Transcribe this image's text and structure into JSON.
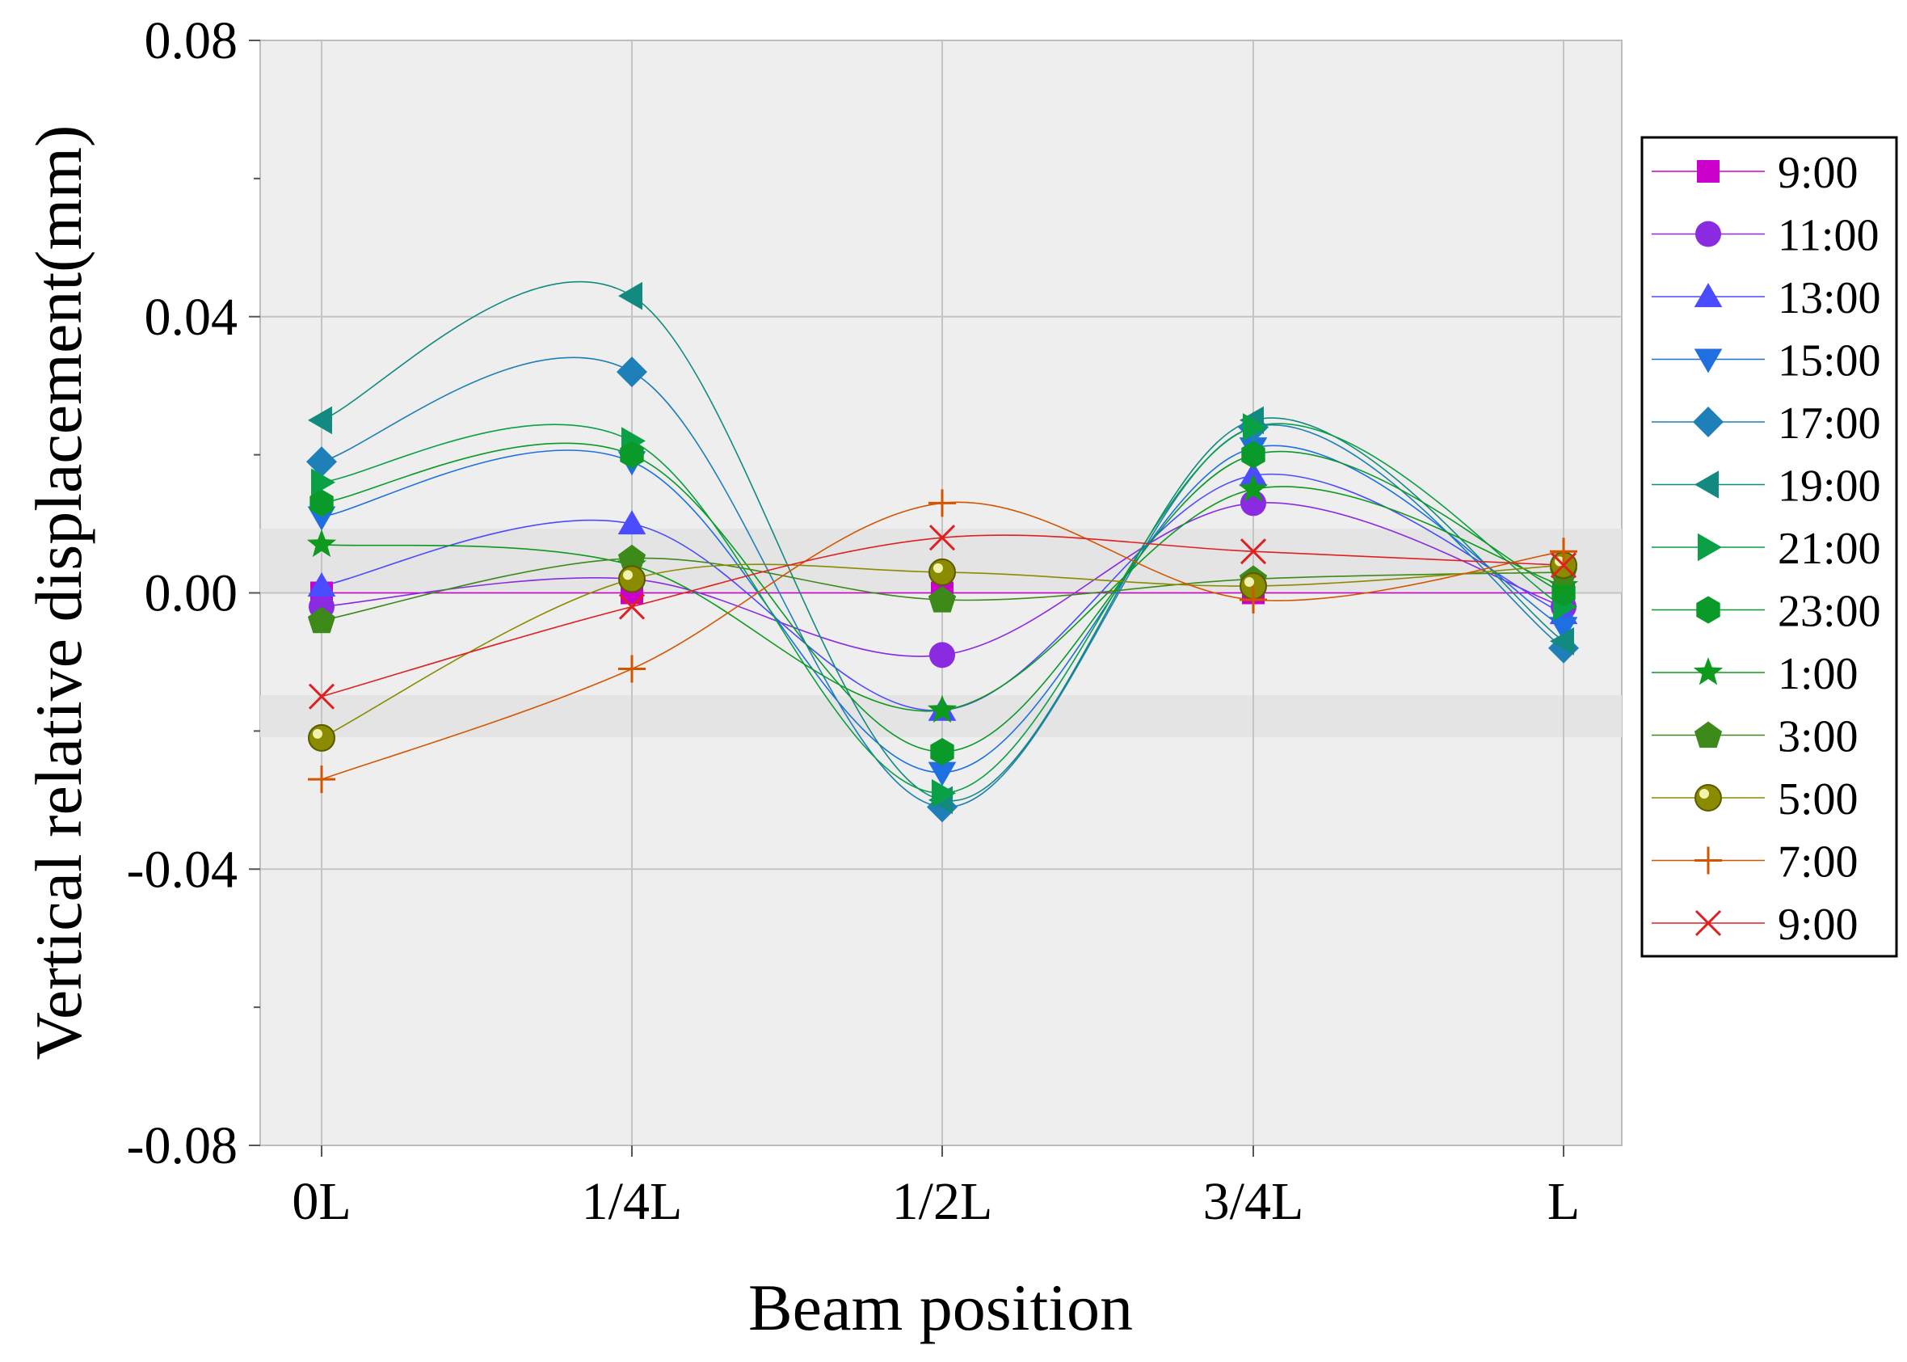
{
  "chart_data": {
    "type": "line",
    "title": "",
    "xlabel": "Beam position",
    "ylabel": "Vertical relative displacement(mm)",
    "categories": [
      "0L",
      "1/4L",
      "1/2L",
      "3/4L",
      "L"
    ],
    "ylim": [
      -0.08,
      0.08
    ],
    "yticks": [
      0.08,
      0.04,
      0.0,
      -0.04,
      -0.08
    ],
    "ytick_labels": [
      "0.08",
      "0.04",
      "0.00",
      "-0.04",
      "-0.08"
    ],
    "grid": true,
    "legend_position": "right",
    "series": [
      {
        "name": "9:00",
        "color": "#cc00cc",
        "marker": "square",
        "values": [
          0.0,
          0.0,
          0.0,
          0.0,
          0.0
        ]
      },
      {
        "name": "11:00",
        "color": "#8a2be2",
        "marker": "circle",
        "values": [
          -0.002,
          0.002,
          -0.009,
          0.013,
          -0.002
        ]
      },
      {
        "name": "13:00",
        "color": "#4b4bff",
        "marker": "triangle-up",
        "values": [
          0.001,
          0.01,
          -0.017,
          0.017,
          -0.003
        ]
      },
      {
        "name": "15:00",
        "color": "#1e6fe0",
        "marker": "triangle-down",
        "values": [
          0.011,
          0.019,
          -0.026,
          0.021,
          -0.005
        ]
      },
      {
        "name": "17:00",
        "color": "#1f7fb8",
        "marker": "diamond",
        "values": [
          0.019,
          0.032,
          -0.031,
          0.024,
          -0.008
        ]
      },
      {
        "name": "19:00",
        "color": "#128a80",
        "marker": "triangle-left",
        "values": [
          0.025,
          0.043,
          -0.03,
          0.025,
          -0.007
        ]
      },
      {
        "name": "21:00",
        "color": "#0aa045",
        "marker": "triangle-right",
        "values": [
          0.016,
          0.022,
          -0.029,
          0.024,
          -0.002
        ]
      },
      {
        "name": "23:00",
        "color": "#0a9a2a",
        "marker": "hexagon",
        "values": [
          0.013,
          0.02,
          -0.023,
          0.02,
          0.0
        ]
      },
      {
        "name": "1:00",
        "color": "#0e9a1e",
        "marker": "star",
        "values": [
          0.007,
          0.004,
          -0.017,
          0.015,
          0.001
        ]
      },
      {
        "name": "3:00",
        "color": "#3d8a1a",
        "marker": "pentagon",
        "values": [
          -0.004,
          0.005,
          -0.001,
          0.002,
          0.003
        ]
      },
      {
        "name": "5:00",
        "color": "#8b8b00",
        "marker": "ball",
        "values": [
          -0.021,
          0.002,
          0.003,
          0.001,
          0.004
        ]
      },
      {
        "name": "7:00",
        "color": "#d45500",
        "marker": "plus",
        "values": [
          -0.027,
          -0.011,
          0.013,
          -0.001,
          0.006
        ]
      },
      {
        "name": "9:00",
        "color": "#e02020",
        "marker": "x",
        "values": [
          -0.015,
          -0.002,
          0.008,
          0.006,
          0.004
        ]
      }
    ]
  }
}
